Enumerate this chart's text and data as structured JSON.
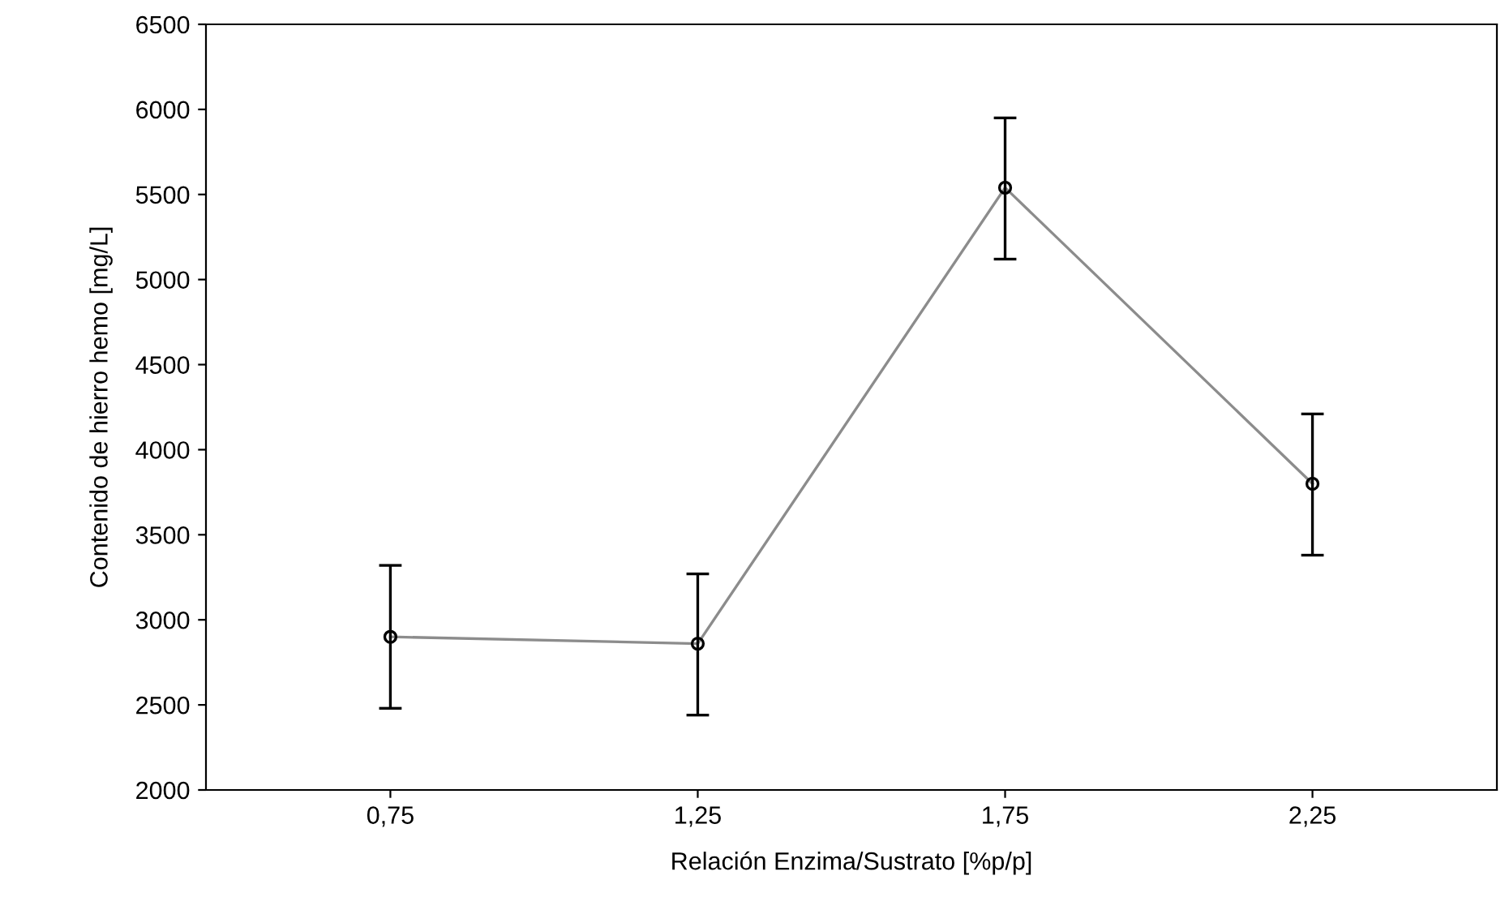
{
  "chart_data": {
    "type": "line",
    "xlabel": "Relación Enzima/Sustrato [%p/p]",
    "ylabel": "Contenido de hierro hemo [mg/L]",
    "categories": [
      "0,75",
      "1,25",
      "1,75",
      "2,25"
    ],
    "series": [
      {
        "color": "#8c8c8c",
        "values": [
          2900,
          2860,
          5540,
          3800
        ],
        "errors": [
          [
            2480,
            3320
          ],
          [
            2440,
            3270
          ],
          [
            5120,
            5950
          ],
          [
            3380,
            4210
          ]
        ]
      }
    ],
    "ylim": [
      2000,
      6500
    ],
    "yticks": [
      2000,
      2500,
      3000,
      3500,
      4000,
      4500,
      5000,
      5500,
      6000,
      6500
    ],
    "grid": false,
    "marker": "circle",
    "line_style": "solid"
  }
}
